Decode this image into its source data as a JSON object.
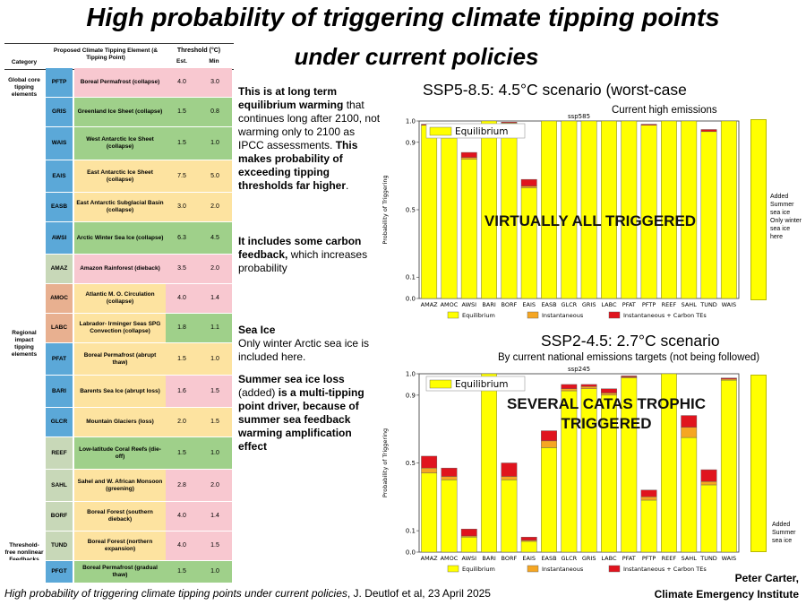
{
  "titles": {
    "line1": "High probability of triggering climate tipping points",
    "line2": "under current policies"
  },
  "table": {
    "header": {
      "category": "Category",
      "element": "Proposed Climate Tipping Element (& Tipping Point)",
      "threshold": "Threshold (°C)",
      "est": "Est.",
      "min": "Min"
    },
    "categories": {
      "global": "Global core tipping elements",
      "regional": "Regional impact tipping elements",
      "threshold_free": "Threshold-free nonlinear Feedbacks"
    },
    "rows": [
      {
        "code": "PFTP",
        "name": "Boreal Permafrost (collapse)",
        "est": "4.0",
        "min": "3.0",
        "code_color": "#5ba8d8",
        "name_color": "#f8c8d0",
        "val_color": "#f8c8d0"
      },
      {
        "code": "GRIS",
        "name": "Greenland Ice Sheet (collapse)",
        "est": "1.5",
        "min": "0.8",
        "code_color": "#5ba8d8",
        "name_color": "#9fd08a",
        "val_color": "#9fd08a"
      },
      {
        "code": "WAIS",
        "name": "West Antarctic Ice Sheet (collapse)",
        "est": "1.5",
        "min": "1.0",
        "code_color": "#5ba8d8",
        "name_color": "#9fd08a",
        "val_color": "#9fd08a"
      },
      {
        "code": "EAIS",
        "name": "East Antarctic Ice Sheet (collapse)",
        "est": "7.5",
        "min": "5.0",
        "code_color": "#5ba8d8",
        "name_color": "#fde3a0",
        "val_color": "#fde3a0"
      },
      {
        "code": "EASB",
        "name": "East Antarctic Subglacial Basin (collapse)",
        "est": "3.0",
        "min": "2.0",
        "code_color": "#5ba8d8",
        "name_color": "#fde3a0",
        "val_color": "#fde3a0"
      },
      {
        "code": "AWSI",
        "name": "Arctic Winter Sea Ice (collapse)",
        "est": "6.3",
        "min": "4.5",
        "code_color": "#5ba8d8",
        "name_color": "#9fd08a",
        "val_color": "#9fd08a"
      },
      {
        "code": "AMAZ",
        "name": "Amazon Rainforest (dieback)",
        "est": "3.5",
        "min": "2.0",
        "code_color": "#c8d8b8",
        "name_color": "#f8c8d0",
        "val_color": "#f8c8d0"
      },
      {
        "code": "AMOC",
        "name": "Atlantic M. O. Circulation (collapse)",
        "est": "4.0",
        "min": "1.4",
        "code_color": "#e8b090",
        "name_color": "#fde3a0",
        "val_color": "#f8c8d0"
      },
      {
        "code": "LABC",
        "name": "Labrador- Irminger Seas SPG Convection (collapse)",
        "est": "1.8",
        "min": "1.1",
        "code_color": "#e8b090",
        "name_color": "#fde3a0",
        "val_color": "#9fd08a"
      },
      {
        "code": "PFAT",
        "name": "Boreal Permafrost (abrupt thaw)",
        "est": "1.5",
        "min": "1.0",
        "code_color": "#5ba8d8",
        "name_color": "#fde3a0",
        "val_color": "#fde3a0"
      },
      {
        "code": "BARI",
        "name": "Barents Sea Ice (abrupt loss)",
        "est": "1.6",
        "min": "1.5",
        "code_color": "#5ba8d8",
        "name_color": "#fde3a0",
        "val_color": "#f8c8d0"
      },
      {
        "code": "GLCR",
        "name": "Mountain Glaciers (loss)",
        "est": "2.0",
        "min": "1.5",
        "code_color": "#5ba8d8",
        "name_color": "#fde3a0",
        "val_color": "#fde3a0"
      },
      {
        "code": "REEF",
        "name": "Low-latitude Coral Reefs (die-off)",
        "est": "1.5",
        "min": "1.0",
        "code_color": "#c8d8b8",
        "name_color": "#9fd08a",
        "val_color": "#9fd08a"
      },
      {
        "code": "SAHL",
        "name": "Sahel and W. African Monsoon (greening)",
        "est": "2.8",
        "min": "2.0",
        "code_color": "#c8d8b8",
        "name_color": "#fde3a0",
        "val_color": "#f8c8d0"
      },
      {
        "code": "BORF",
        "name": "Boreal Forest (southern dieback)",
        "est": "4.0",
        "min": "1.4",
        "code_color": "#c8d8b8",
        "name_color": "#fde3a0",
        "val_color": "#f8c8d0"
      },
      {
        "code": "TUND",
        "name": "Boreal Forest (northern expansion)",
        "est": "4.0",
        "min": "1.5",
        "code_color": "#c8d8b8",
        "name_color": "#fde3a0",
        "val_color": "#f8c8d0"
      },
      {
        "code": "PFGT",
        "name": "Boreal Permafrost (gradual thaw)",
        "est": "1.5",
        "min": "1.0",
        "code_color": "#5ba8d8",
        "name_color": "#9fd08a",
        "val_color": "#9fd08a"
      }
    ]
  },
  "notes": {
    "p1_bold": "This is at long term equilibrium warming",
    "p1_rest": "that continues long after 2100, not warming only to 2100 as  IPCC assessments.",
    "p1_bold2": "This makes probability of exceeding tipping thresholds far higher",
    "p1_end": ".",
    "p2_bold": "It includes some carbon feedback,",
    "p2_rest": "which increases probability",
    "p3_bold": "Sea Ice",
    "p3_rest": "Only  winter Arctic sea ice is included here.",
    "p4_bold": "Summer sea ice loss",
    "p4_rest": "(added)",
    "p4_bold2": "is a multi-tipping point driver, because of summer sea feedback warming amplification effect"
  },
  "scenario1": {
    "title": "SSP5-8.5:   4.5°C scenario (worst-case",
    "subtitle": "Current high emissions",
    "overlay": "VIRTUALLY ALL TRIGGERED",
    "side_note": "Added Summer sea ice Only winter sea ice here"
  },
  "scenario2": {
    "title": "SSP2-4.5:   2.7°C scenario",
    "subtitle": "By current national emissions targets (not being followed)",
    "overlay": "SEVERAL CATAS TROPHIC TRIGGERED",
    "side_note": "Added Summer sea ice"
  },
  "chart_data": [
    {
      "type": "bar",
      "title": "ssp585",
      "ylabel": "Probability of Triggering",
      "yticks": [
        "0.0",
        "0.1",
        "0.5",
        "0.9",
        "1.0"
      ],
      "ylim": [
        0,
        1
      ],
      "scale": "logit-like",
      "legend_box": "Equilibrium",
      "legend": [
        "Equilibrium",
        "Instantaneous",
        "Instantaneous + Carbon TEs"
      ],
      "categories": [
        "AMAZ",
        "AMOC",
        "AWSI",
        "BARI",
        "BORF",
        "EAIS",
        "EASB",
        "GLCR",
        "GRIS",
        "LABC",
        "PFAT",
        "PFTP",
        "REEF",
        "SAHL",
        "TUND",
        "WAIS"
      ],
      "series": [
        {
          "name": "Equilibrium",
          "values": [
            0.98,
            0.92,
            0.8,
            1.0,
            0.99,
            0.63,
            1.0,
            1.0,
            1.0,
            1.0,
            1.0,
            0.98,
            1.0,
            1.0,
            0.95,
            1.0
          ]
        },
        {
          "name": "Instantaneous",
          "values": [
            0.98,
            0.92,
            0.81,
            1.0,
            0.99,
            0.64,
            1.0,
            1.0,
            1.0,
            1.0,
            1.0,
            0.98,
            1.0,
            1.0,
            0.95,
            1.0
          ]
        },
        {
          "name": "Instantaneous + Carbon TEs",
          "values": [
            0.985,
            0.93,
            0.84,
            1.0,
            0.995,
            0.68,
            1.0,
            1.0,
            1.0,
            1.0,
            1.0,
            0.985,
            1.0,
            1.0,
            0.96,
            1.0
          ]
        }
      ]
    },
    {
      "type": "bar",
      "title": "ssp245",
      "ylabel": "Probability of Triggering",
      "yticks": [
        "0.0",
        "0.1",
        "0.5",
        "0.9",
        "1.0"
      ],
      "ylim": [
        0,
        1
      ],
      "scale": "logit-like",
      "legend_box": "Equilibrium",
      "legend": [
        "Equilibrium",
        "Instantaneous",
        "Instantaneous + Carbon TEs"
      ],
      "categories": [
        "AMAZ",
        "AMOC",
        "AWSI",
        "BARI",
        "BORF",
        "EAIS",
        "EASB",
        "GLCR",
        "GRIS",
        "LABC",
        "PFAT",
        "PFTP",
        "REEF",
        "SAHL",
        "TUND",
        "WAIS"
      ],
      "series": [
        {
          "name": "Equilibrium",
          "values": [
            0.44,
            0.4,
            0.07,
            1.0,
            0.4,
            0.05,
            0.59,
            0.92,
            0.93,
            0.9,
            0.98,
            0.28,
            1.0,
            0.65,
            0.37,
            0.97
          ]
        },
        {
          "name": "Instantaneous",
          "values": [
            0.47,
            0.42,
            0.075,
            1.0,
            0.42,
            0.055,
            0.63,
            0.93,
            0.94,
            0.91,
            0.985,
            0.3,
            1.0,
            0.71,
            0.39,
            0.975
          ]
        },
        {
          "name": "Instantaneous + Carbon TEs",
          "values": [
            0.54,
            0.47,
            0.11,
            1.0,
            0.5,
            0.07,
            0.69,
            0.95,
            0.95,
            0.93,
            0.99,
            0.34,
            1.0,
            0.78,
            0.46,
            0.98
          ]
        }
      ]
    }
  ],
  "citation": {
    "title": "High probability of triggering climate tipping points under current policies",
    "rest": ", J. Deutlof et al, 23 April 2025"
  },
  "author": {
    "name": "Peter Carter,",
    "org": "Climate Emergency Institute"
  },
  "colors": {
    "equilibrium": "#ffff00",
    "instantaneous": "#f5a623",
    "carbon": "#e0141e"
  }
}
